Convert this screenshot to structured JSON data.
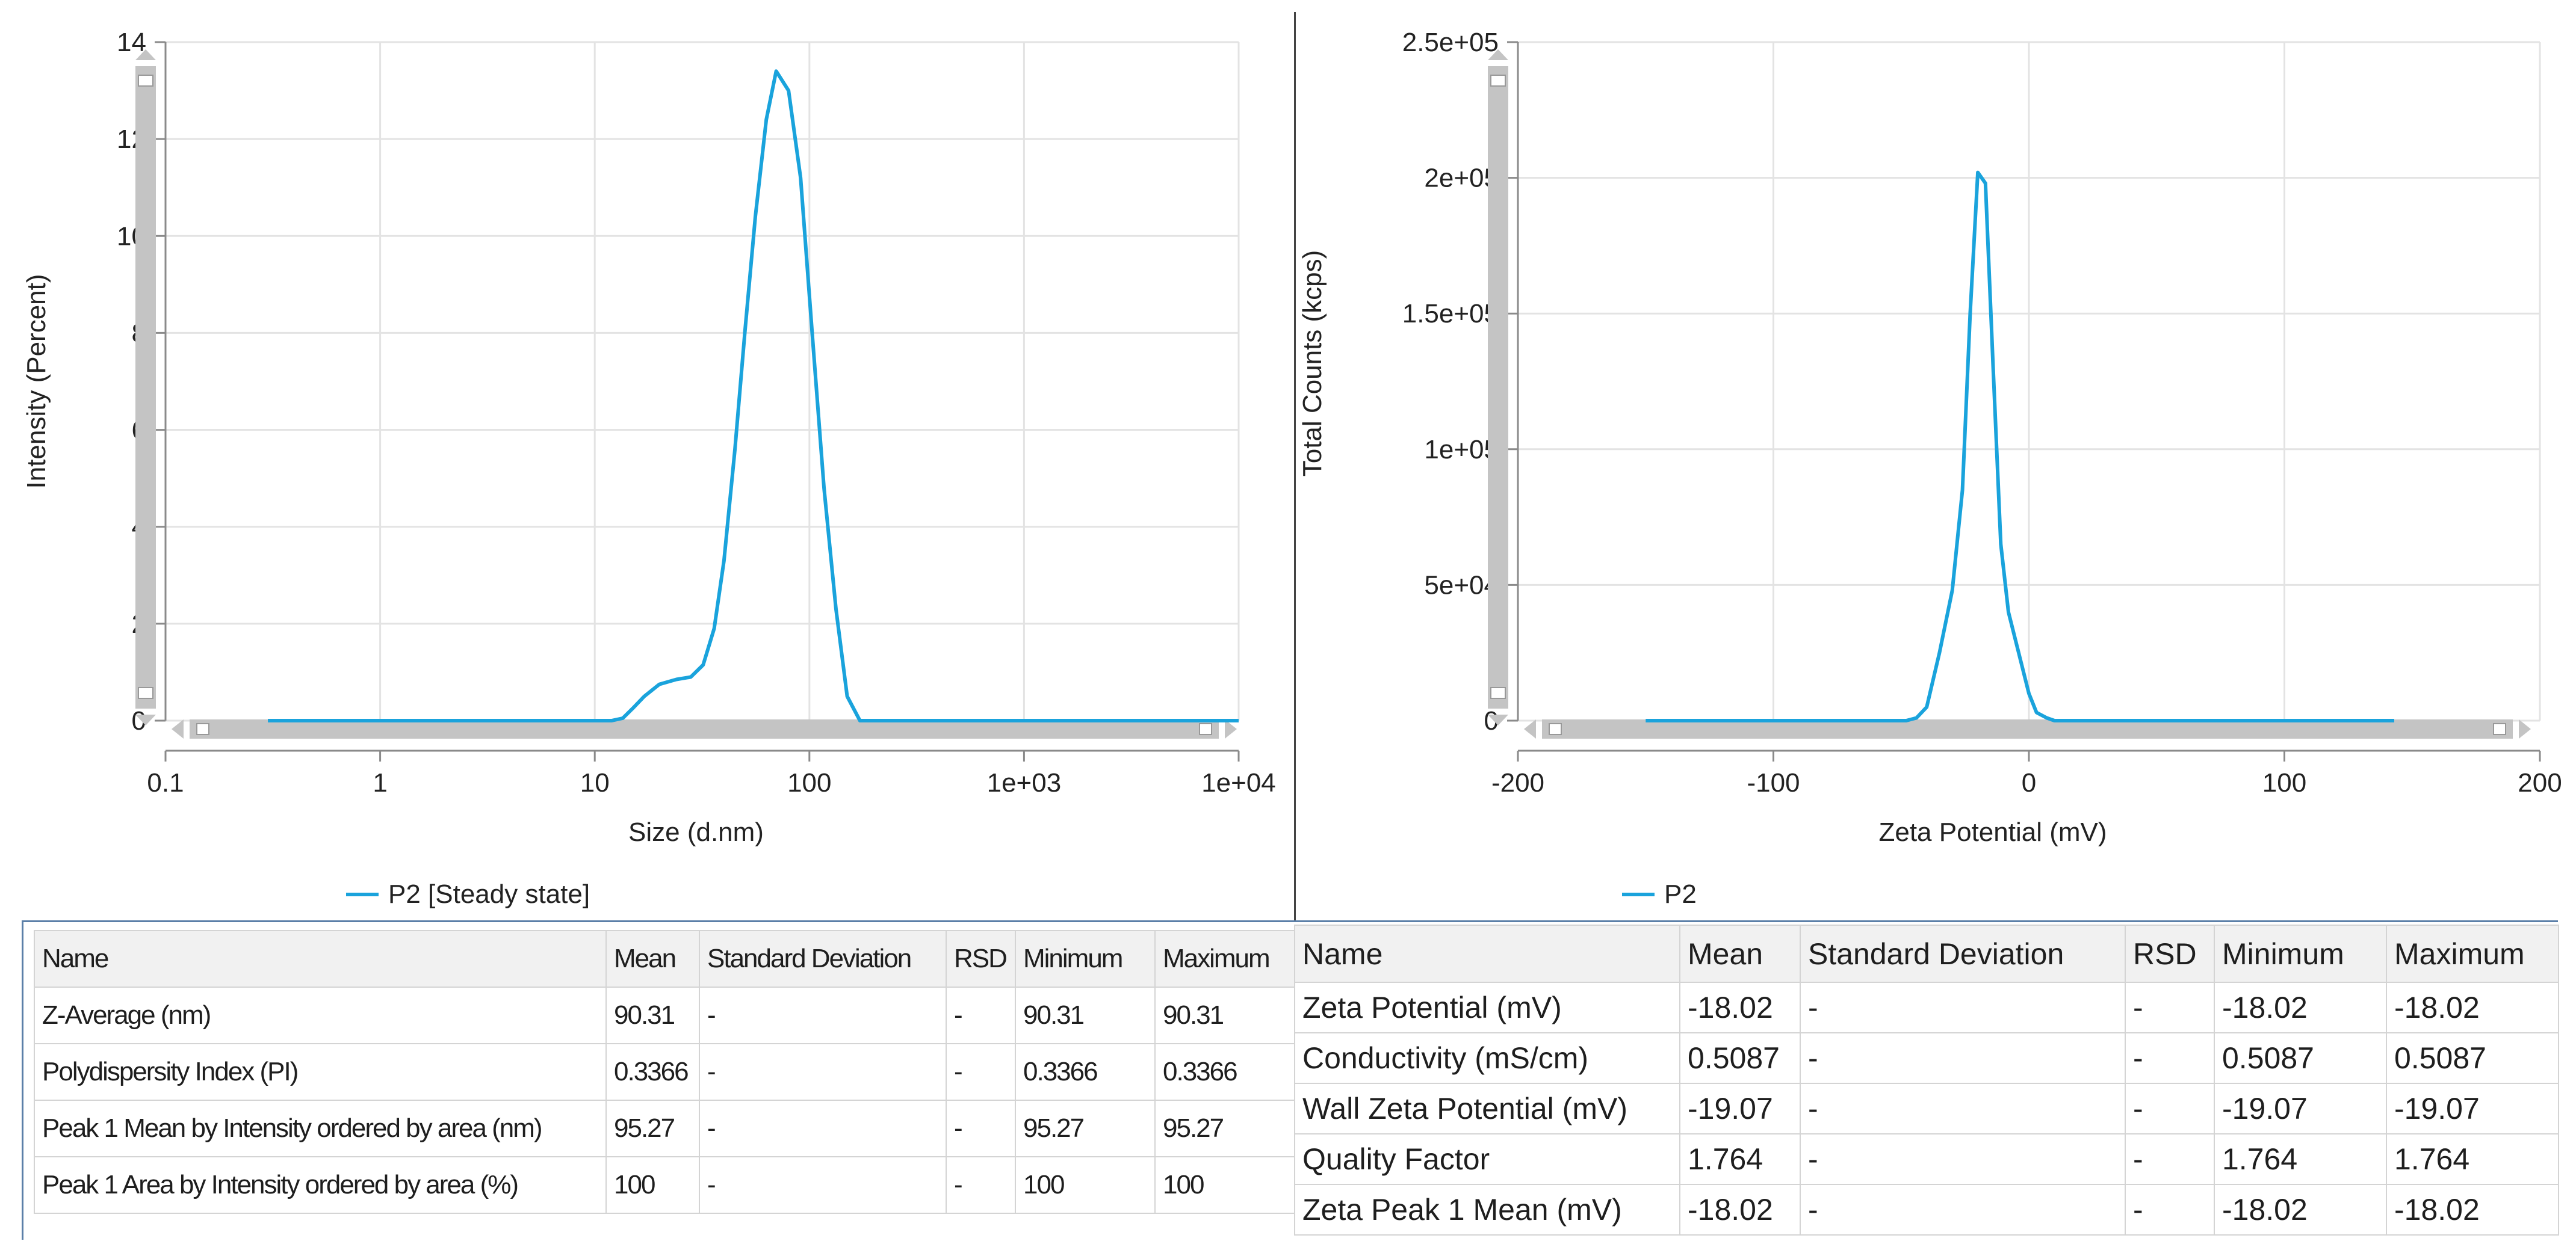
{
  "colors": {
    "series": "#1aa3dc",
    "grid": "#e3e3e3",
    "axis": "#8a8a8a",
    "scrollbar": "#c4c4c4"
  },
  "chart_data": [
    {
      "type": "line",
      "xlabel": "Size (d.nm)",
      "ylabel": "Intensity (Percent)",
      "x_scale": "log",
      "xlim": [
        0.1,
        10000
      ],
      "ylim": [
        0,
        14
      ],
      "x_ticks": [
        "0.1",
        "1",
        "10",
        "100",
        "1e+03",
        "1e+04"
      ],
      "y_ticks": [
        "0",
        "2",
        "4",
        "6",
        "8",
        "10",
        "12",
        "14"
      ],
      "grid": true,
      "legend_position": "bottom-left",
      "series": [
        {
          "name": "P2 [Steady state]",
          "x": [
            0.3,
            1,
            3,
            10,
            12,
            13.5,
            15,
            17,
            20,
            24,
            28,
            32,
            36,
            40,
            45,
            50,
            56,
            63,
            70,
            80,
            91,
            103,
            117,
            133,
            150,
            172,
            195,
            222,
            255,
            300,
            1000,
            10000
          ],
          "y": [
            0,
            0,
            0,
            0,
            0,
            0.05,
            0.25,
            0.5,
            0.75,
            0.85,
            0.9,
            1.15,
            1.9,
            3.3,
            5.6,
            8.0,
            10.4,
            12.4,
            13.4,
            13.0,
            11.2,
            8.0,
            4.8,
            2.3,
            0.5,
            0,
            0,
            0,
            0,
            0,
            0,
            0
          ]
        }
      ]
    },
    {
      "type": "line",
      "xlabel": "Zeta Potential (mV)",
      "ylabel": "Total Counts (kcps)",
      "xlim": [
        -200,
        200
      ],
      "ylim": [
        0,
        250000
      ],
      "x_ticks": [
        "-200",
        "-100",
        "0",
        "100",
        "200"
      ],
      "y_ticks": [
        "0",
        "5e+04",
        "1e+05",
        "1.5e+05",
        "2e+05",
        "2.5e+05"
      ],
      "grid": true,
      "legend_position": "bottom-left",
      "series": [
        {
          "name": "P2",
          "x": [
            -150,
            -60,
            -48,
            -44,
            -40,
            -35,
            -30,
            -26,
            -23,
            -20,
            -17,
            -14,
            -11,
            -8,
            -4,
            0,
            3,
            7,
            10,
            20,
            60,
            100,
            143
          ],
          "y": [
            0,
            0,
            0,
            1000,
            5000,
            25000,
            48000,
            85000,
            150000,
            202000,
            198000,
            130000,
            65000,
            40000,
            25000,
            10000,
            3000,
            1000,
            0,
            0,
            0,
            0,
            0
          ]
        }
      ]
    }
  ],
  "table_left": {
    "headers": [
      "Name",
      "Mean",
      "Standard Deviation",
      "RSD",
      "Minimum",
      "Maximum"
    ],
    "rows": [
      [
        "Z-Average (nm)",
        "90.31",
        "-",
        "-",
        "90.31",
        "90.31"
      ],
      [
        "Polydispersity Index (PI)",
        "0.3366",
        "-",
        "-",
        "0.3366",
        "0.3366"
      ],
      [
        "Peak 1 Mean by Intensity ordered by area (nm)",
        "95.27",
        "-",
        "-",
        "95.27",
        "95.27"
      ],
      [
        "Peak 1 Area by Intensity ordered by area (%)",
        "100",
        "-",
        "-",
        "100",
        "100"
      ]
    ]
  },
  "table_right": {
    "headers": [
      "Name",
      "Mean",
      "Standard Deviation",
      "RSD",
      "Minimum",
      "Maximum"
    ],
    "rows": [
      [
        "Zeta Potential (mV)",
        "-18.02",
        "-",
        "-",
        "-18.02",
        "-18.02"
      ],
      [
        "Conductivity (mS/cm)",
        "0.5087",
        "-",
        "-",
        "0.5087",
        "0.5087"
      ],
      [
        "Wall Zeta Potential (mV)",
        "-19.07",
        "-",
        "-",
        "-19.07",
        "-19.07"
      ],
      [
        "Quality Factor",
        "1.764",
        "-",
        "-",
        "1.764",
        "1.764"
      ],
      [
        "Zeta Peak 1 Mean (mV)",
        "-18.02",
        "-",
        "-",
        "-18.02",
        "-18.02"
      ]
    ]
  }
}
